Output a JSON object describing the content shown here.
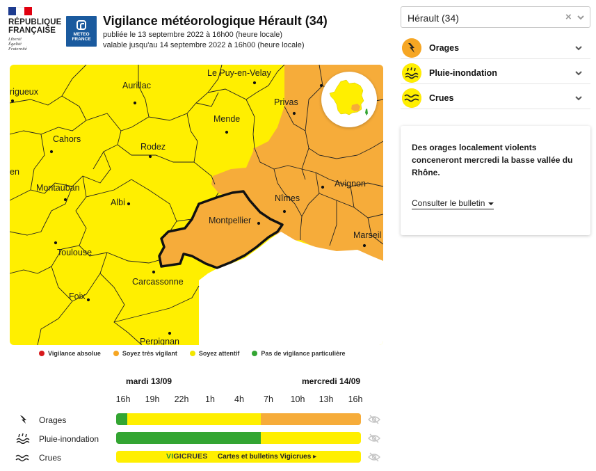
{
  "header": {
    "rf_name_line1": "RÉPUBLIQUE",
    "rf_name_line2": "FRANÇAISE",
    "rf_motto_1": "Liberté",
    "rf_motto_2": "Égalité",
    "rf_motto_3": "Fraternité",
    "mf_line1": "METEO",
    "mf_line2": "FRANCE",
    "title": "Vigilance météorologique Hérault (34)",
    "published": "publiée le 13 septembre 2022 à 16h00 (heure locale)",
    "valid_until": "valable jusqu'au 14 septembre 2022 à 16h00 (heure locale)"
  },
  "map": {
    "cities": {
      "perigueux": "rigueux",
      "aurillac": "Aurillac",
      "le_puy": "Le Puy-en-Velay",
      "privas": "Privas",
      "mende": "Mende",
      "cahors": "Cahors",
      "rodez": "Rodez",
      "agen": "en",
      "montauban": "Montauban",
      "albi": "Albi",
      "nimes": "Nîmes",
      "avignon": "Avignon",
      "montpellier": "Montpellier",
      "toulouse": "Toulouse",
      "marseille": "Marseil",
      "carcassonne": "Carcassonne",
      "foix": "Foix",
      "perpignan": "Perpignan"
    }
  },
  "legend": [
    {
      "label": "Vigilance absolue",
      "color": "#d7191c"
    },
    {
      "label": "Soyez très vigilant",
      "color": "#f6a623"
    },
    {
      "label": "Soyez attentif",
      "color": "#f2e600"
    },
    {
      "label": "Pas de vigilance particulière",
      "color": "#33a532"
    }
  ],
  "timeline": {
    "day1": "mardi 13/09",
    "day2": "mercredi 14/09",
    "hours": [
      "16h",
      "19h",
      "22h",
      "1h",
      "4h",
      "7h",
      "10h",
      "13h",
      "16h"
    ],
    "rows": [
      {
        "label": "Orages",
        "segments": [
          {
            "fraction": 0.045,
            "color": "#33a532"
          },
          {
            "fraction": 0.545,
            "color": "#ffef00"
          },
          {
            "fraction": 0.41,
            "color": "#f6ac3a"
          }
        ]
      },
      {
        "label": "Pluie-inondation",
        "segments": [
          {
            "fraction": 0.59,
            "color": "#33a532"
          },
          {
            "fraction": 0.41,
            "color": "#ffef00"
          }
        ]
      },
      {
        "label": "Crues"
      }
    ],
    "vigicrues_logo_1": "VI",
    "vigicrues_logo_2": "GICRUES",
    "vigicrues_link": "Cartes et bulletins Vigicrues ▸"
  },
  "panel": {
    "department": "Hérault (34)",
    "clear_symbol": "×",
    "phenomena": [
      {
        "label": "Orages",
        "icon": "lightning-icon"
      },
      {
        "label": "Pluie-inondation",
        "icon": "rain-flood-icon"
      },
      {
        "label": "Crues",
        "icon": "wave-icon"
      }
    ],
    "bulletin_text": "Des orages localement violents conceneront mercredi la basse vallée du Rhône.",
    "bulletin_link": "Consulter le bulletin"
  }
}
